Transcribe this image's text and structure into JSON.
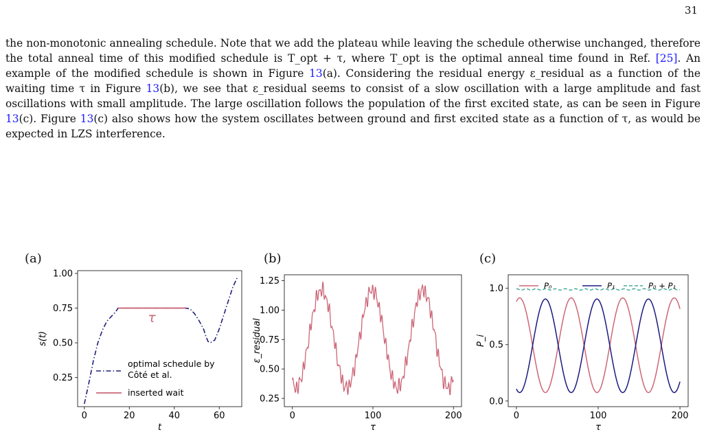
{
  "page": {
    "number": "31"
  },
  "paragraph": {
    "text_before_ref25": "the non-monotonic annealing schedule. Note that we add the plateau while leaving the schedule otherwise unchanged, therefore the total anneal time of this modified schedule is T_opt + τ, where T_opt is the optimal anneal time found in Ref. ",
    "ref25": "[25]",
    "text_a": ". An example of the modified schedule is shown in Figure ",
    "fig_ref": "13",
    "text_b": "(a). Considering the residual energy ε_residual as a function of the waiting time τ in Figure ",
    "text_c": "(b), we see that ε_residual seems to consist of a slow oscillation with a large amplitude and fast oscillations with small amplitude. The large oscillation follows the population of the first excited state, as can be seen in Figure ",
    "text_d": "(c). Figure ",
    "text_e": "(c) also shows how the system oscillates between ground and first excited state as a function of τ, as would be expected in LZS interference."
  },
  "colors": {
    "schedule": "#1f1f7a",
    "wait": "#cc6677",
    "p0": "#cc6677",
    "p1": "#1a1a7f",
    "sum": "#44aa99"
  },
  "chart_data": [
    {
      "panel": "(a)",
      "type": "line",
      "xlabel": "t",
      "ylabel": "s(t)",
      "xlim": [
        -3,
        70
      ],
      "ylim": [
        0.04,
        1.02
      ],
      "xticks": [
        0,
        20,
        40,
        60
      ],
      "yticks": [
        0.25,
        0.5,
        0.75,
        1.0
      ],
      "ytick_labels": [
        "0.25",
        "0.50",
        "0.75",
        "1.00"
      ],
      "annotation": "τ",
      "series": [
        {
          "name": "optimal schedule by Côté et al.",
          "style": "dashdot",
          "x": [
            0,
            2,
            4,
            6,
            8,
            10,
            12,
            14,
            15,
            45,
            47,
            49,
            51,
            53,
            54,
            55,
            56,
            58,
            60,
            62,
            64,
            66,
            68
          ],
          "y": [
            0.06,
            0.21,
            0.37,
            0.5,
            0.59,
            0.655,
            0.69,
            0.725,
            0.75,
            0.75,
            0.745,
            0.71,
            0.66,
            0.6,
            0.55,
            0.51,
            0.5,
            0.52,
            0.6,
            0.7,
            0.8,
            0.9,
            0.97
          ]
        },
        {
          "name": "inserted wait",
          "style": "solid",
          "x": [
            15,
            45
          ],
          "y": [
            0.75,
            0.75
          ]
        }
      ]
    },
    {
      "panel": "(b)",
      "type": "line",
      "xlabel": "τ",
      "ylabel": "ε_residual",
      "xlim": [
        -10,
        210
      ],
      "ylim": [
        0.18,
        1.3
      ],
      "xticks": [
        0,
        100,
        200
      ],
      "yticks": [
        0.25,
        0.5,
        0.75,
        1.0,
        1.25
      ],
      "ytick_labels": [
        "0.25",
        "0.50",
        "0.75",
        "1.00",
        "1.25"
      ],
      "model": {
        "base": 0.755,
        "amplitude": 0.415,
        "period": 63,
        "phase_peak": 36,
        "ripple": 0.08
      },
      "series": [
        {
          "name": "",
          "samples": 400
        }
      ]
    },
    {
      "panel": "(c)",
      "type": "line",
      "xlabel": "τ",
      "ylabel": "P_i",
      "xlim": [
        -10,
        210
      ],
      "ylim": [
        -0.05,
        1.12
      ],
      "xticks": [
        0,
        100,
        200
      ],
      "yticks": [
        0.0,
        0.5,
        1.0
      ],
      "ytick_labels": [
        "0.0",
        "0.5",
        "1.0"
      ],
      "legend": "top",
      "series": [
        {
          "name": "P_0",
          "style": "solid",
          "center": 0.495,
          "amplitude": 0.42,
          "period": 63,
          "peak_at": 4
        },
        {
          "name": "P_1",
          "style": "solid",
          "center": 0.49,
          "amplitude": 0.415,
          "period": 63,
          "peak_at": 35.5
        },
        {
          "name": "P_0 + P_1",
          "style": "dashed",
          "center": 0.99,
          "amplitude": 0.006,
          "period": 12,
          "peak_at": 0
        }
      ]
    }
  ]
}
